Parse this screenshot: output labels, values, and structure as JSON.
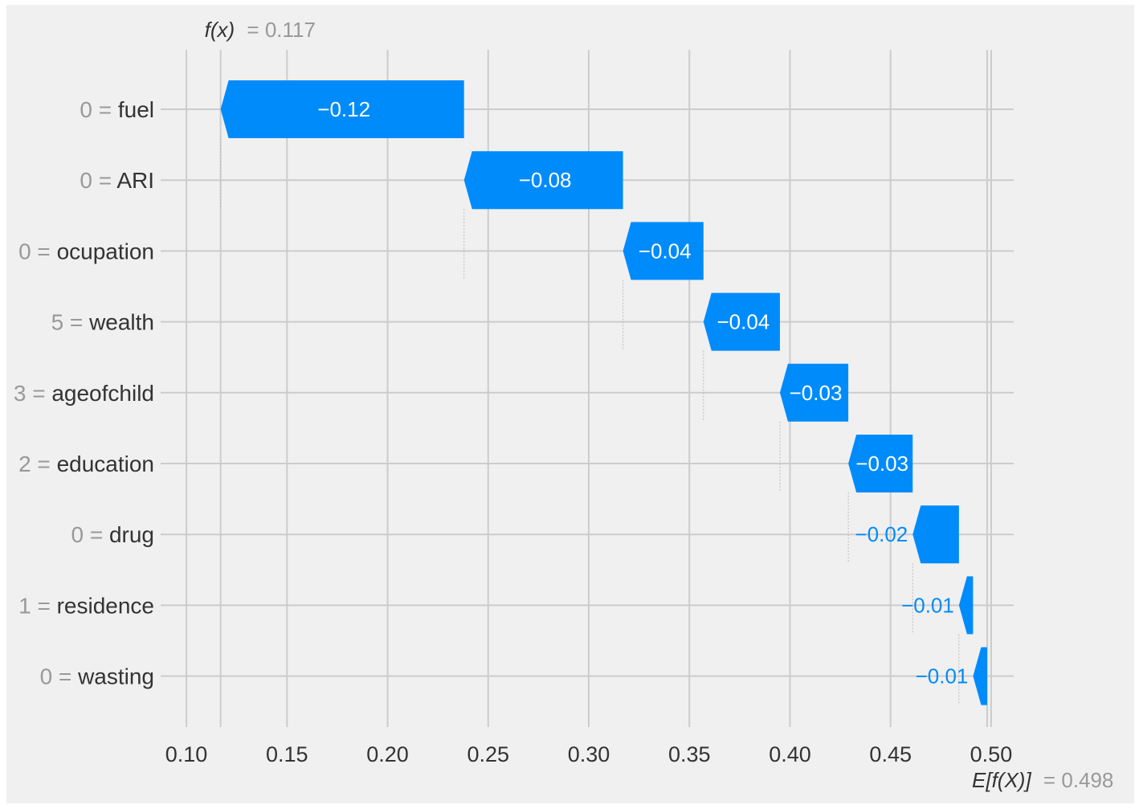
{
  "chart_data": {
    "type": "waterfall",
    "fx_label": "f(x)",
    "fx_value_text": "= 0.117",
    "fx": 0.117,
    "ex_label": "E[f(X)]",
    "ex_value_text": "= 0.498",
    "expected_value": 0.498,
    "xlim": [
      0.0872,
      0.5112
    ],
    "xticks": [
      {
        "value": 0.1,
        "label": "0.10"
      },
      {
        "value": 0.15,
        "label": "0.15"
      },
      {
        "value": 0.2,
        "label": "0.20"
      },
      {
        "value": 0.25,
        "label": "0.25"
      },
      {
        "value": 0.3,
        "label": "0.30"
      },
      {
        "value": 0.35,
        "label": "0.35"
      },
      {
        "value": 0.4,
        "label": "0.40"
      },
      {
        "value": 0.45,
        "label": "0.45"
      },
      {
        "value": 0.5,
        "label": "0.50"
      }
    ],
    "grid": true,
    "bar_color": "#008bfb",
    "features": [
      {
        "value_text": "0",
        "name": "fuel",
        "label": "−0.12",
        "start": 0.238,
        "end": 0.117
      },
      {
        "value_text": "0",
        "name": "ARI",
        "label": "−0.08",
        "start": 0.317,
        "end": 0.238
      },
      {
        "value_text": "0",
        "name": "ocupation",
        "label": "−0.04",
        "start": 0.357,
        "end": 0.317
      },
      {
        "value_text": "5",
        "name": "wealth",
        "label": "−0.04",
        "start": 0.395,
        "end": 0.357
      },
      {
        "value_text": "3",
        "name": "ageofchild",
        "label": "−0.03",
        "start": 0.429,
        "end": 0.395
      },
      {
        "value_text": "2",
        "name": "education",
        "label": "−0.03",
        "start": 0.461,
        "end": 0.429
      },
      {
        "value_text": "0",
        "name": "drug",
        "label": "−0.02",
        "start": 0.484,
        "end": 0.461
      },
      {
        "value_text": "1",
        "name": "residence",
        "label": "−0.01",
        "start": 0.491,
        "end": 0.484
      },
      {
        "value_text": "0",
        "name": "wasting",
        "label": "−0.01",
        "start": 0.498,
        "end": 0.491
      }
    ]
  }
}
